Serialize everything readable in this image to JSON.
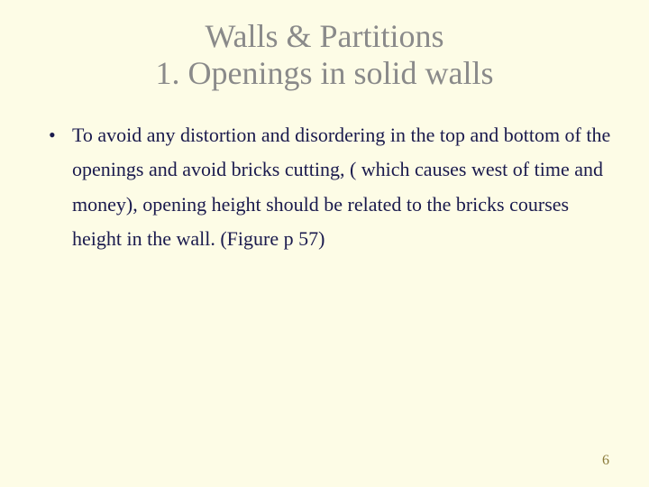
{
  "slide": {
    "background_color": "#fdfce6",
    "title": {
      "line1": "Walls & Partitions",
      "line2": "1. Openings in solid walls",
      "color": "#8a8a8a",
      "font_size": 36,
      "font_family": "Garamond",
      "alignment": "center"
    },
    "bullets": [
      {
        "text": "To avoid any distortion and disordering in the top and bottom of the openings and avoid bricks cutting, ( which causes west of time and money), opening height should be related to the bricks courses height in the wall. (Figure p 57)"
      }
    ],
    "body_text_color": "#1a1a4d",
    "body_font_size": 22,
    "page_number": "6",
    "page_number_color": "#8a7a3a"
  }
}
